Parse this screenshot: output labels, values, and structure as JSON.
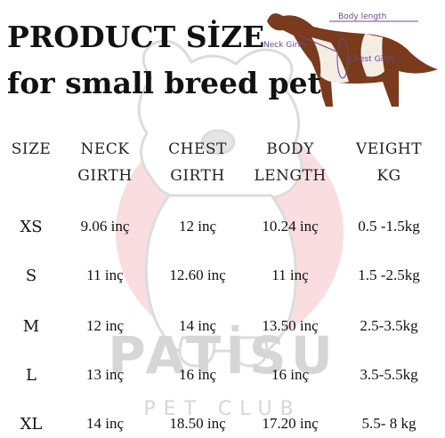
{
  "title_line1": "PRODUCT SİZE",
  "title_line2": "for small breed pet",
  "diagram": {
    "neck_label": "Neck Girth",
    "body_label": "Body length",
    "chest_label": "Chest Girth"
  },
  "headers": [
    {
      "line1": "SIZE",
      "line2": ""
    },
    {
      "line1": "NECK",
      "line2": "GIRTH"
    },
    {
      "line1": "CHEST",
      "line2": "GIRTH"
    },
    {
      "line1": "BODY",
      "line2": "LENGTH"
    },
    {
      "line1": "VEIGHT",
      "line2": "KG"
    }
  ],
  "rows": [
    {
      "size": "XS",
      "neck": "9.06 inç",
      "chest": "12 inç",
      "body": "10.24 inç",
      "weight": "0.5 -1.5kg"
    },
    {
      "size": "S",
      "neck": "11 inç",
      "chest": "12.60 inç",
      "body": "11 inç",
      "weight": "1.5 -2.5kg"
    },
    {
      "size": "M",
      "neck": "12 inç",
      "chest": "14 inç",
      "body": "13.50 inç",
      "weight": "2.5-3.5kg"
    },
    {
      "size": "L",
      "neck": "13 inç",
      "chest": "16 inç",
      "body": "16 inç",
      "weight": "3.5-5.5kg"
    },
    {
      "size": "XL",
      "neck": "14 inç",
      "chest": "18.50 inç",
      "body": "17.20 inç",
      "weight": "5.5- 8 kg"
    }
  ],
  "brand": {
    "name": "PATİSU",
    "sub": "PET CLUB"
  },
  "colors": {
    "accent_pink": "#f7d3d8",
    "watermark_gray": "#d6d6d6",
    "dog_brown": "#7a3a1c",
    "label_purple": "#6b4a8a"
  }
}
